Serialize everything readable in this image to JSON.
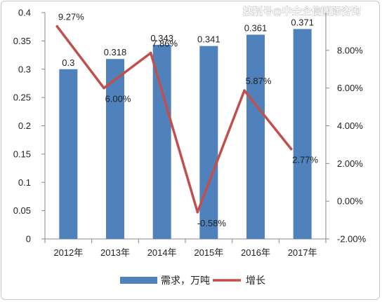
{
  "watermark": "搜狐号@中金企信国际咨询",
  "chart_data": {
    "type": "bar",
    "categories": [
      "2012年",
      "2013年",
      "2014年",
      "2015年",
      "2016年",
      "2017年"
    ],
    "series": [
      {
        "name": "需求，万吨",
        "type": "bar",
        "axis": "left",
        "color": "#4f81bd",
        "values": [
          0.3,
          0.318,
          0.343,
          0.341,
          0.361,
          0.371
        ],
        "labels": [
          "0.3",
          "0.318",
          "0.343",
          "0.341",
          "0.361",
          "0.371"
        ]
      },
      {
        "name": "增长",
        "type": "line",
        "axis": "right",
        "color": "#c0504d",
        "values": [
          9.27,
          6.0,
          7.86,
          -0.58,
          5.87,
          2.77
        ],
        "labels": [
          "9.27%",
          "6.00%",
          "7.86%",
          "-0.58%",
          "5.87%",
          "2.77%"
        ]
      }
    ],
    "y_left": {
      "range": [
        0,
        0.4
      ],
      "ticks": [
        "0",
        "0.05",
        "0.1",
        "0.15",
        "0.2",
        "0.25",
        "0.3",
        "0.35",
        "0.4"
      ]
    },
    "y_right": {
      "range": [
        -2,
        10
      ],
      "ticks": [
        "-2.00%",
        "0.00%",
        "2.00%",
        "4.00%",
        "6.00%",
        "8.00%"
      ]
    },
    "grid": false,
    "legend_position": "bottom"
  }
}
